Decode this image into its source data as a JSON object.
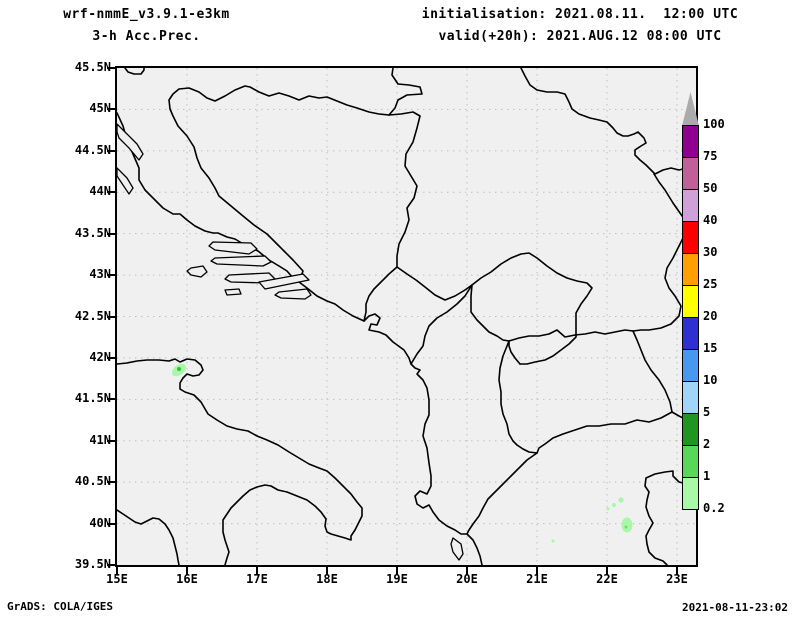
{
  "header": {
    "model_title": "wrf-nmmE_v3.9.1-e3km",
    "subtitle": "3-h Acc.Prec.",
    "init_line": "initialisation: 2021.08.11.  12:00 UTC",
    "valid_line": "valid(+20h): 2021.AUG.12 08:00 UTC"
  },
  "footer": {
    "grads_credit": "GrADS: COLA/IGES",
    "timestamp": "2021-08-11-23:02"
  },
  "map": {
    "lat_labels": [
      "45.5N",
      "45N",
      "44.5N",
      "44N",
      "43.5N",
      "43N",
      "42.5N",
      "42N",
      "41.5N",
      "41N",
      "40.5N",
      "40N",
      "39.5N"
    ],
    "lon_labels": [
      "15E",
      "16E",
      "17E",
      "18E",
      "19E",
      "20E",
      "21E",
      "22E",
      "23E"
    ],
    "background_color": "#f0f0f0",
    "outline_color": "#000000",
    "grid_color": "#c0c0c0"
  },
  "colorbar": {
    "labels_top_to_bottom": [
      "100",
      "75",
      "50",
      "40",
      "30",
      "25",
      "20",
      "15",
      "10",
      "5",
      "2",
      "1",
      "0.2"
    ],
    "segments_top_to_bottom": [
      {
        "range": "75-100",
        "color": "#900090"
      },
      {
        "range": "50-75",
        "color": "#c06098"
      },
      {
        "range": "40-50",
        "color": "#d0a0d8"
      },
      {
        "range": "30-40",
        "color": "#fa0000"
      },
      {
        "range": "25-30",
        "color": "#ffa000"
      },
      {
        "range": "20-25",
        "color": "#ffff00"
      },
      {
        "range": "15-20",
        "color": "#3030d0"
      },
      {
        "range": "10-15",
        "color": "#4898f0"
      },
      {
        "range": "5-10",
        "color": "#a0d4f8"
      },
      {
        "range": "2-5",
        "color": "#209620"
      },
      {
        "range": "1-2",
        "color": "#58d858"
      },
      {
        "range": "0.2-1",
        "color": "#a8f8a8"
      }
    ],
    "overflow_arrow_color": "#ababab"
  },
  "chart_data": {
    "type": "heatmap",
    "title": "wrf-nmmE_v3.9.1-e3km 3-h Acc.Prec.",
    "initialisation": "2021.08.11. 12:00 UTC",
    "valid": "(+20h) 2021.AUG.12 08:00 UTC",
    "x_axis": {
      "label_units": "degrees east",
      "range": [
        15,
        23.28
      ],
      "ticks": [
        15,
        16,
        17,
        18,
        19,
        20,
        21,
        22,
        23
      ]
    },
    "y_axis": {
      "label_units": "degrees north",
      "range": [
        39.5,
        45.5
      ],
      "ticks": [
        39.5,
        40,
        40.5,
        41,
        41.5,
        42,
        42.5,
        43,
        43.5,
        44,
        44.5,
        45,
        45.5
      ]
    },
    "grid": "dotted at every tick",
    "legend_position": "right colorbar",
    "colorbar_levels_mm": [
      0.2,
      1,
      2,
      5,
      10,
      15,
      20,
      25,
      30,
      40,
      50,
      75,
      100
    ],
    "precip_areas": [
      {
        "lon": 15.9,
        "lat": 41.85,
        "value_mm": "0.2-2",
        "note": "small cell over Gargano/Italy"
      },
      {
        "lon": 22.2,
        "lat": 40.35,
        "value_mm": "0.2-1",
        "note": "small specks"
      },
      {
        "lon": 22.1,
        "lat": 40.23,
        "value_mm": "0.2-1",
        "note": "small specks"
      },
      {
        "lon": 22.24,
        "lat": 40.0,
        "value_mm": "0.2-1",
        "note": "larger blob"
      },
      {
        "lon": 21.2,
        "lat": 39.8,
        "value_mm": "0.2-1",
        "note": "tiny speck"
      }
    ]
  }
}
